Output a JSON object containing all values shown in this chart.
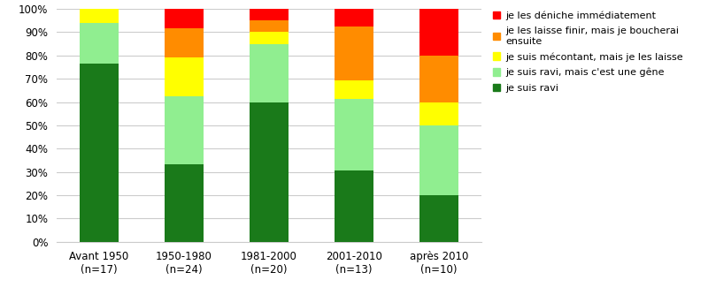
{
  "categories": [
    "Avant 1950\n(n=17)",
    "1950-1980\n(n=24)",
    "1981-2000\n(n=20)",
    "2001-2010\n(n=13)",
    "après 2010\n(n=10)"
  ],
  "series": [
    {
      "label": "je suis ravi",
      "color": "#1a7a1a",
      "values": [
        76.47,
        33.33,
        60.0,
        30.77,
        20.0
      ]
    },
    {
      "label": "je suis ravi, mais c'est une gêne",
      "color": "#90ee90",
      "values": [
        17.65,
        29.17,
        25.0,
        30.77,
        30.0
      ]
    },
    {
      "label": "je suis mécontant, mais je les laisse",
      "color": "#ffff00",
      "values": [
        5.88,
        16.67,
        5.0,
        7.69,
        10.0
      ]
    },
    {
      "label": "je les laisse finir, mais je boucherai\nensuite",
      "color": "#ff8c00",
      "values": [
        0.0,
        12.5,
        5.0,
        23.08,
        20.0
      ]
    },
    {
      "label": "je les déniche immédiatement",
      "color": "#ff0000",
      "values": [
        0.0,
        8.33,
        5.0,
        7.69,
        20.0
      ]
    }
  ],
  "ylim": [
    0,
    100
  ],
  "yticks": [
    0,
    10,
    20,
    30,
    40,
    50,
    60,
    70,
    80,
    90,
    100
  ],
  "yticklabels": [
    "0%",
    "10%",
    "20%",
    "30%",
    "40%",
    "50%",
    "60%",
    "70%",
    "80%",
    "90%",
    "100%"
  ],
  "background_color": "#ffffff",
  "grid_color": "#cccccc",
  "bar_width": 0.45,
  "legend_fontsize": 8.0,
  "tick_fontsize": 8.5,
  "figsize": [
    8.0,
    3.34
  ],
  "dpi": 100,
  "xlim": [
    -0.5,
    4.5
  ]
}
